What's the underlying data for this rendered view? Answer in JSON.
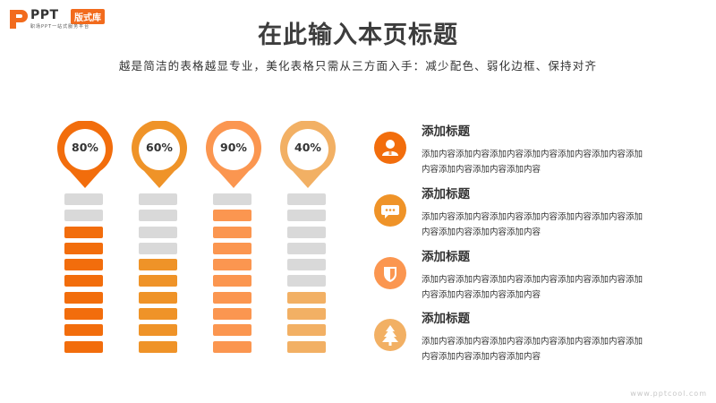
{
  "logo": {
    "text": "PPT",
    "badge": "版式库",
    "subtitle": "职场PPT一站式服务平台"
  },
  "title": "在此输入本页标题",
  "subtitle": "越是简洁的表格越显专业，美化表格只需从三方面入手：减少配色、弱化边框、保持对齐",
  "columns": [
    {
      "label": "80%",
      "value": 80,
      "color": "#f26d0c"
    },
    {
      "label": "60%",
      "value": 60,
      "color": "#ef9328"
    },
    {
      "label": "90%",
      "value": 90,
      "color": "#fb9650"
    },
    {
      "label": "40%",
      "value": 40,
      "color": "#f2b064"
    }
  ],
  "empty_bar_color": "#d9d9d9",
  "items": [
    {
      "icon": "person-icon",
      "title": "添加标题",
      "desc": "添加内容添加内容添加内容添加内容添加内容添加内容添加内容添加内容添加内容添加内容",
      "color": "#f26d0c"
    },
    {
      "icon": "chat-icon",
      "title": "添加标题",
      "desc": "添加内容添加内容添加内容添加内容添加内容添加内容添加内容添加内容添加内容添加内容",
      "color": "#ef9328"
    },
    {
      "icon": "shield-icon",
      "title": "添加标题",
      "desc": "添加内容添加内容添加内容添加内容添加内容添加内容添加内容添加内容添加内容添加内容",
      "color": "#fb9650"
    },
    {
      "icon": "tree-icon",
      "title": "添加标题",
      "desc": "添加内容添加内容添加内容添加内容添加内容添加内容添加内容添加内容添加内容添加内容",
      "color": "#f2b064"
    }
  ],
  "watermark": "www.pptcool.com"
}
